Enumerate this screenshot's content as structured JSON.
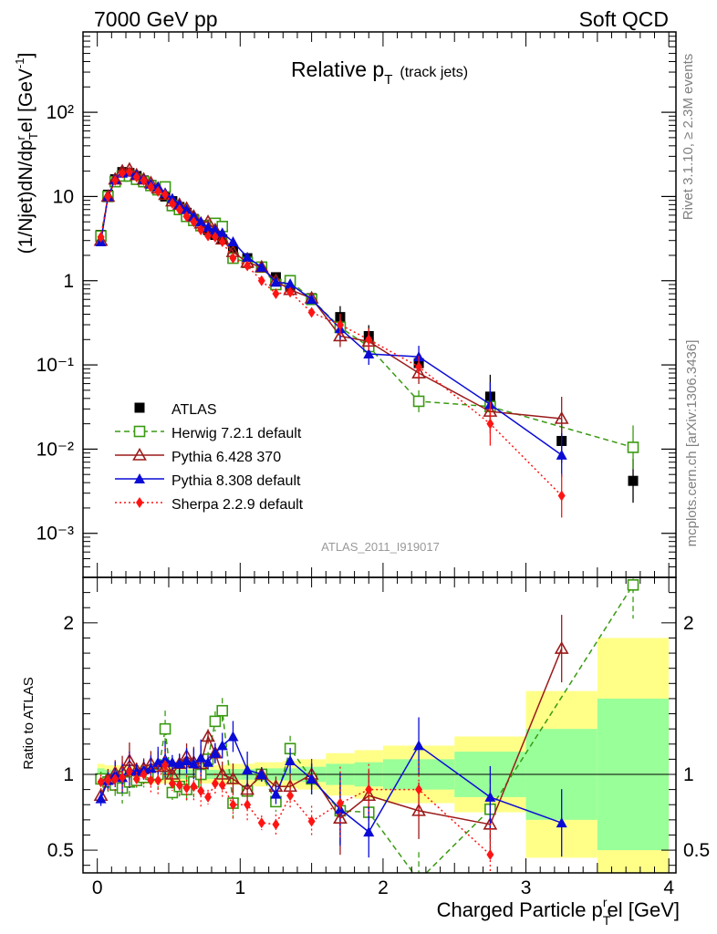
{
  "header": {
    "left": "7000 GeV pp",
    "right": "Soft QCD"
  },
  "side_labels": {
    "rivet": "Rivet 3.1.10, ≥ 2.3M events",
    "mcplots": "mcplots.cern.ch [arXiv:1306.3436]"
  },
  "chart_data": [
    {
      "type": "scatter",
      "panel": "main",
      "title": "Relative p",
      "title_sub": "T",
      "title_suffix": "(track jets)",
      "ylabel": "(1/Njet)dN/dp",
      "ylabel_sup_r": "r",
      "ylabel_sub_T": "T",
      "ylabel_tail": "el [GeV",
      "ylabel_exp": "-1",
      "ylabel_close": "]",
      "yscale": "log",
      "ylim": [
        0.0003,
        900
      ],
      "xlim": [
        -0.1,
        4.05
      ],
      "y_tick_labels": [
        "10⁻³",
        "10⁻²",
        "10⁻¹",
        "1",
        "10",
        "10²"
      ],
      "watermark": "ATLAS_2011_I919017",
      "legend_position": "bottom-left",
      "series": [
        {
          "name": "ATLAS",
          "color": "#000000",
          "marker": "filled-square",
          "x": [
            0.025,
            0.075,
            0.125,
            0.175,
            0.225,
            0.275,
            0.325,
            0.375,
            0.425,
            0.475,
            0.525,
            0.575,
            0.625,
            0.675,
            0.725,
            0.775,
            0.825,
            0.875,
            0.95,
            1.05,
            1.15,
            1.25,
            1.35,
            1.5,
            1.7,
            1.9,
            2.25,
            2.75,
            3.25,
            3.75
          ],
          "y": [
            3.5,
            10.5,
            16,
            19.5,
            19,
            17.5,
            15.5,
            13.5,
            12,
            10,
            8.8,
            7.5,
            6.4,
            5.4,
            4.5,
            4.0,
            3.5,
            3.1,
            2.3,
            1.85,
            1.45,
            1.1,
            0.85,
            0.62,
            0.37,
            0.22,
            0.105,
            0.042,
            0.0125,
            0.0042
          ]
        },
        {
          "name": "Herwig 7.2.1 default",
          "color": "#3a9a12",
          "marker": "open-square",
          "line": "dashed",
          "x": [
            0.025,
            0.075,
            0.125,
            0.175,
            0.225,
            0.275,
            0.325,
            0.375,
            0.425,
            0.475,
            0.525,
            0.575,
            0.625,
            0.675,
            0.725,
            0.775,
            0.825,
            0.875,
            0.95,
            1.05,
            1.15,
            1.25,
            1.35,
            1.5,
            1.7,
            1.9,
            2.25,
            2.75,
            3.25,
            3.75
          ],
          "y": [
            3.4,
            10,
            15,
            17.5,
            17.5,
            16,
            15,
            13.5,
            12,
            13,
            7.8,
            7.0,
            5.8,
            5.2,
            4.5,
            4.5,
            4.8,
            4.4,
            1.85,
            1.65,
            1.45,
            0.9,
            1.0,
            0.6,
            0.28,
            0.165,
            0.037,
            0.032,
            null,
            0.0105
          ]
        },
        {
          "name": "Pythia 6.428 370",
          "color": "#9b1b1b",
          "marker": "open-triangle",
          "line": "solid",
          "x": [
            0.025,
            0.075,
            0.125,
            0.175,
            0.225,
            0.275,
            0.325,
            0.375,
            0.425,
            0.475,
            0.525,
            0.575,
            0.625,
            0.675,
            0.725,
            0.775,
            0.825,
            0.875,
            0.95,
            1.05,
            1.15,
            1.25,
            1.35,
            1.5,
            1.7,
            1.9,
            2.25,
            2.75,
            3.25
          ],
          "y": [
            3.0,
            10,
            16,
            20,
            21,
            18,
            16,
            14.5,
            12.5,
            10.5,
            8.8,
            8.0,
            7.2,
            5.8,
            4.8,
            5.0,
            4.0,
            3.1,
            2.2,
            1.65,
            1.45,
            1.0,
            0.78,
            0.62,
            0.22,
            0.19,
            0.08,
            0.028,
            0.023
          ]
        },
        {
          "name": "Pythia 8.308 default",
          "color": "#0b0bd6",
          "marker": "filled-triangle",
          "line": "solid",
          "x": [
            0.025,
            0.075,
            0.125,
            0.175,
            0.225,
            0.275,
            0.325,
            0.375,
            0.425,
            0.475,
            0.525,
            0.575,
            0.625,
            0.675,
            0.725,
            0.775,
            0.825,
            0.875,
            0.95,
            1.05,
            1.15,
            1.25,
            1.35,
            1.5,
            1.7,
            1.9,
            2.25,
            2.75,
            3.25
          ],
          "y": [
            2.9,
            10,
            16,
            19,
            19.5,
            18,
            16,
            14,
            13,
            11,
            9.5,
            8.0,
            7.0,
            5.8,
            5.0,
            4.3,
            4.0,
            3.7,
            2.9,
            1.9,
            1.45,
            0.96,
            0.92,
            0.6,
            0.27,
            0.135,
            0.125,
            0.034,
            0.0085
          ]
        },
        {
          "name": "Sherpa 2.2.9 default",
          "color": "#ff1414",
          "marker": "filled-diamond",
          "line": "dotted",
          "x": [
            0.025,
            0.075,
            0.125,
            0.175,
            0.225,
            0.275,
            0.325,
            0.375,
            0.425,
            0.475,
            0.525,
            0.575,
            0.625,
            0.675,
            0.725,
            0.775,
            0.825,
            0.875,
            0.95,
            1.05,
            1.15,
            1.25,
            1.35,
            1.5,
            1.7,
            1.9,
            2.25,
            2.75,
            3.25
          ],
          "y": [
            3.3,
            10,
            15.5,
            19,
            19.5,
            17,
            15.5,
            13,
            11.5,
            10.5,
            8.3,
            7.0,
            5.8,
            5.0,
            4.0,
            3.4,
            3.3,
            2.9,
            1.85,
            1.5,
            1.0,
            0.7,
            0.73,
            0.42,
            0.3,
            0.2,
            0.095,
            0.02,
            0.0028
          ]
        }
      ]
    },
    {
      "type": "scatter",
      "panel": "ratio",
      "ylabel": "Ratio to ATLAS",
      "xlabel": "Charged Particle p",
      "xlabel_sub": "T",
      "xlabel_sup": "r",
      "xlabel_tail": "el [GeV]",
      "ylim": [
        0.35,
        2.3
      ],
      "xlim": [
        -0.1,
        4.05
      ],
      "y_ticks": [
        0.5,
        1,
        2
      ],
      "y_tick_labels": [
        "0.5",
        "1",
        "2"
      ],
      "x_ticks": [
        0,
        1,
        2,
        3,
        4
      ],
      "x_tick_labels": [
        "0",
        "1",
        "2",
        "3",
        "4"
      ],
      "reference_line": 1,
      "bands": {
        "edges": [
          0.0,
          0.05,
          0.1,
          0.15,
          0.2,
          0.25,
          0.3,
          0.35,
          0.4,
          0.45,
          0.5,
          0.55,
          0.6,
          0.65,
          0.7,
          0.75,
          0.8,
          0.85,
          0.9,
          1.0,
          1.1,
          1.2,
          1.3,
          1.4,
          1.6,
          1.8,
          2.0,
          2.5,
          3.0,
          3.5,
          4.0
        ],
        "stat_half_width": [
          0.04,
          0.03,
          0.03,
          0.03,
          0.03,
          0.03,
          0.03,
          0.03,
          0.03,
          0.03,
          0.03,
          0.03,
          0.03,
          0.03,
          0.03,
          0.03,
          0.03,
          0.03,
          0.035,
          0.035,
          0.04,
          0.04,
          0.04,
          0.05,
          0.07,
          0.08,
          0.1,
          0.15,
          0.3,
          0.5
        ],
        "total_half_width": [
          0.07,
          0.06,
          0.06,
          0.06,
          0.06,
          0.06,
          0.06,
          0.06,
          0.06,
          0.06,
          0.06,
          0.06,
          0.06,
          0.06,
          0.06,
          0.06,
          0.06,
          0.06,
          0.07,
          0.07,
          0.08,
          0.08,
          0.09,
          0.1,
          0.14,
          0.16,
          0.19,
          0.25,
          0.55,
          0.9
        ],
        "stat_color": "#99ff99",
        "total_color": "#ffff88"
      },
      "series": [
        {
          "name": "Herwig 7.2.1 default",
          "color": "#3a9a12",
          "marker": "open-square",
          "line": "dashed",
          "x": [
            0.025,
            0.075,
            0.125,
            0.175,
            0.225,
            0.275,
            0.325,
            0.375,
            0.425,
            0.475,
            0.525,
            0.575,
            0.625,
            0.675,
            0.725,
            0.775,
            0.825,
            0.875,
            0.95,
            1.05,
            1.15,
            1.25,
            1.35,
            1.5,
            1.7,
            1.9,
            2.25,
            2.75,
            3.75
          ],
          "y": [
            0.97,
            0.95,
            0.93,
            0.91,
            0.95,
            0.96,
            0.98,
            1.0,
            1.0,
            1.3,
            0.88,
            0.92,
            0.9,
            0.95,
            1.0,
            1.1,
            1.35,
            1.42,
            0.81,
            0.89,
            1.0,
            0.82,
            1.17,
            0.97,
            0.76,
            0.75,
            0.3,
            0.77,
            2.25
          ]
        },
        {
          "name": "Pythia 6.428 370",
          "color": "#9b1b1b",
          "marker": "open-triangle",
          "line": "solid",
          "x": [
            0.025,
            0.075,
            0.125,
            0.175,
            0.225,
            0.275,
            0.325,
            0.375,
            0.425,
            0.475,
            0.525,
            0.575,
            0.625,
            0.675,
            0.725,
            0.775,
            0.825,
            0.875,
            0.95,
            1.05,
            1.15,
            1.25,
            1.35,
            1.5,
            1.7,
            1.9,
            2.25,
            2.75,
            3.25
          ],
          "y": [
            0.86,
            0.97,
            1.01,
            1.02,
            1.09,
            1.03,
            1.04,
            1.07,
            1.05,
            1.05,
            1.0,
            1.07,
            1.12,
            1.08,
            1.07,
            1.25,
            1.14,
            1.0,
            0.97,
            0.9,
            1.0,
            0.92,
            0.92,
            1.0,
            0.71,
            0.86,
            0.76,
            0.67,
            1.83
          ]
        },
        {
          "name": "Pythia 8.308 default",
          "color": "#0b0bd6",
          "marker": "filled-triangle",
          "line": "solid",
          "x": [
            0.025,
            0.075,
            0.125,
            0.175,
            0.225,
            0.275,
            0.325,
            0.375,
            0.425,
            0.475,
            0.525,
            0.575,
            0.625,
            0.675,
            0.725,
            0.775,
            0.825,
            0.875,
            0.95,
            1.05,
            1.15,
            1.25,
            1.35,
            1.5,
            1.7,
            1.9,
            2.25,
            2.75,
            3.25
          ],
          "y": [
            0.84,
            0.96,
            1.0,
            0.98,
            1.03,
            1.02,
            1.03,
            1.04,
            1.08,
            1.1,
            1.08,
            1.07,
            1.09,
            1.07,
            1.11,
            1.08,
            1.14,
            1.19,
            1.25,
            1.03,
            1.0,
            0.87,
            1.09,
            0.97,
            0.77,
            0.62,
            1.19,
            0.85,
            0.68
          ]
        },
        {
          "name": "Sherpa 2.2.9 default",
          "color": "#ff1414",
          "marker": "filled-diamond",
          "line": "dotted",
          "x": [
            0.025,
            0.075,
            0.125,
            0.175,
            0.225,
            0.275,
            0.325,
            0.375,
            0.425,
            0.475,
            0.525,
            0.575,
            0.625,
            0.675,
            0.725,
            0.775,
            0.825,
            0.875,
            0.95,
            1.05,
            1.15,
            1.25,
            1.35,
            1.5,
            1.7,
            1.9,
            2.25,
            2.75
          ],
          "y": [
            0.95,
            0.96,
            0.97,
            0.98,
            1.02,
            0.97,
            1.0,
            0.96,
            0.96,
            1.06,
            0.94,
            0.93,
            0.91,
            0.92,
            0.89,
            0.85,
            0.94,
            0.93,
            0.8,
            0.8,
            0.68,
            0.67,
            0.86,
            0.69,
            0.81,
            0.9,
            0.9,
            0.47
          ]
        }
      ]
    }
  ]
}
